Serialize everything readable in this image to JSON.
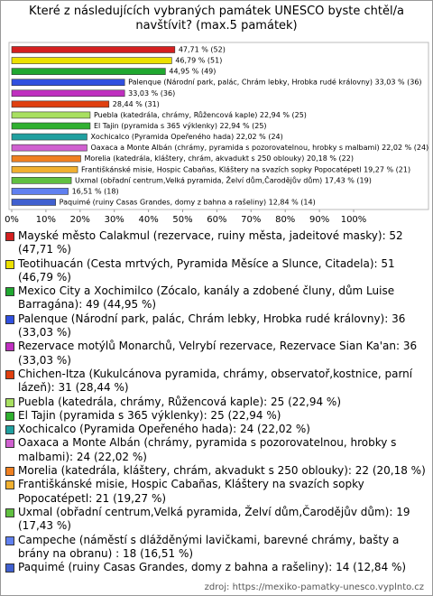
{
  "chart_data": {
    "type": "bar",
    "orientation": "horizontal",
    "title": "Které z následujících vybraných památek UNESCO byste chtěl/a navštívit? (max.5 památek)",
    "categories": [
      "Mayské město Calakmul (rezervace, ruiny města, jadeitové masky): 52 (47,71 %)",
      "Teotihuacán (Cesta mrtvých, Pyramida Měsíce a Slunce, Citadela): 51 (46,79 %)",
      "Mexico City a Xochimilco (Zócalo, kanály a zdobené čluny, dům Luise Barragána): 49 (44,95 %)",
      "Palenque (Národní park, palác, Chrám lebky, Hrobka rudé královny): 36 (33,03 %)",
      "Rezervace motýlů Monarchů, Velrybí rezervace, Rezervace Sian Ka'an: 36 (33,03 %)",
      "Chichen-Itza (Kukulcánova pyramida, chrámy, observatoř,kostnice, parní lázeň): 31 (28,44 %)",
      "Puebla (katedrála, chrámy, Růžencová kaple): 25 (22,94 %)",
      "El Tajin (pyramida s 365 výklenky): 25 (22,94 %)",
      "Xochicalco (Pyramida Opeřeného hada): 24 (22,02 %)",
      "Oaxaca a Monte Albán (chrámy, pyramida s pozorovatelnou, hrobky s malbami): 24 (22,02 %)",
      "Morelia (katedrála, kláštery, chrám, akvadukt s 250 oblouky): 22 (20,18 %)",
      "Františkánské misie, Hospic Cabañas, Kláštery na svazích sopky Popocatépetl: 21 (19,27 %)",
      "Uxmal (obřadní centrum,Velká pyramida, Želví dům,Čarodějův dům): 19 (17,43 %)",
      "Campeche (náměstí s dlážděnými lavičkami, barevné chrámy, bašty a brány na obranu) : 18 (16,51 %)",
      "Paquimé (ruiny Casas Grandes, domy z bahna a rašeliny): 14 (12,84 %)"
    ],
    "values": [
      47.71,
      46.79,
      44.95,
      33.03,
      33.03,
      28.44,
      22.94,
      22.94,
      22.02,
      22.02,
      20.18,
      19.27,
      17.43,
      16.51,
      12.84
    ],
    "value_labels": [
      "47,71 % (52)",
      "46,79 % (51)",
      "44,95 % (49)",
      "Palenque (Národní park, palác, Chrám lebky, Hrobka rudé královny) 33,03 % (36)",
      "33,03 % (36)",
      "28,44 % (31)",
      "Puebla (katedrála, chrámy, Růžencová kaple) 22,94 % (25)",
      "El Tajin (pyramida s 365 výklenky) 22,94 % (25)",
      "Xochicalco (Pyramida Opeřeného hada) 22,02 % (24)",
      "Oaxaca a Monte Albán (chrámy, pyramida s pozorovatelnou, hrobky s malbami) 22,02 % (24)",
      "Morelia (katedrála, kláštery, chrám, akvadukt s 250 oblouky) 20,18 % (22)",
      "Františkánské misie, Hospic Cabañas, Kláštery na svazích sopky Popocatépetl 19,27 % (21)",
      "Uxmal (obřadní centrum,Velká pyramida, Želví dům,Čarodějův dům) 17,43 % (19)",
      "16,51 % (18)",
      "Paquimé (ruiny Casas Grandes, domy z bahna a rašeliny) 12,84 % (14)"
    ],
    "colors": [
      "#d42020",
      "#ece000",
      "#20a830",
      "#3050e0",
      "#c030c0",
      "#e04010",
      "#a8e060",
      "#30b030",
      "#20a0a0",
      "#d060d0",
      "#f08020",
      "#f0b030",
      "#60c040",
      "#6080f0",
      "#4060d0"
    ],
    "xlim": [
      0,
      100
    ],
    "xticks": [
      {
        "value": 0,
        "label": "0%"
      },
      {
        "value": 10,
        "label": "10%"
      },
      {
        "value": 20,
        "label": "20%"
      },
      {
        "value": 30,
        "label": "30%"
      },
      {
        "value": 40,
        "label": "40%"
      },
      {
        "value": 50,
        "label": "50%"
      },
      {
        "value": 60,
        "label": "60%"
      },
      {
        "value": 70,
        "label": "70%"
      },
      {
        "value": 80,
        "label": "80%"
      },
      {
        "value": 90,
        "label": "90%"
      },
      {
        "value": 100,
        "label": "100%"
      }
    ],
    "source": "zdroj: https://mexiko-pamatky-unesco.vyplnto.cz"
  }
}
